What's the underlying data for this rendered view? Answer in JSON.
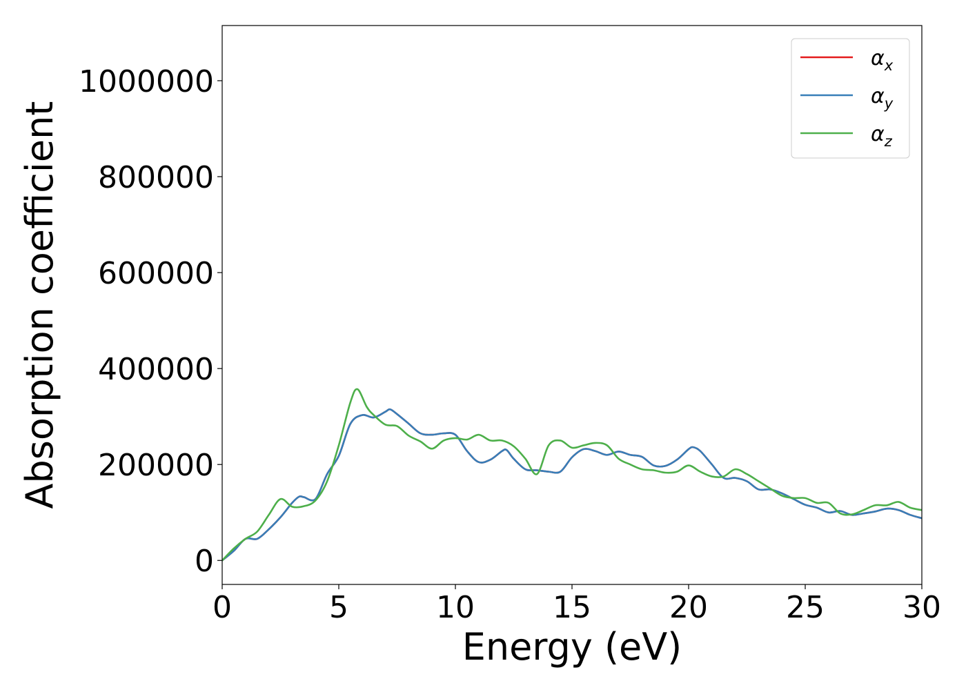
{
  "chart_data": {
    "type": "line",
    "xlabel": "Energy (eV)",
    "ylabel": "Absorption coefficient",
    "xlim": [
      0,
      30
    ],
    "ylim": [
      -50000,
      1115000
    ],
    "x_ticks": [
      "0",
      "5",
      "10",
      "15",
      "20",
      "25",
      "30"
    ],
    "y_ticks": [
      "0",
      "200000",
      "400000",
      "600000",
      "800000",
      "1000000"
    ],
    "grid": false,
    "legend_position": "top-right",
    "series": [
      {
        "name": "α_x",
        "label_main": "α",
        "label_sub": "x",
        "color": "#e41a1c",
        "x": [
          0,
          0.5,
          1.0,
          1.5,
          2.0,
          2.5,
          3.0,
          3.3,
          3.5,
          4.0,
          4.5,
          5.0,
          5.5,
          6.0,
          6.5,
          7.0,
          7.2,
          7.5,
          8.0,
          8.5,
          9.0,
          9.5,
          10.0,
          10.5,
          11.0,
          11.5,
          12.0,
          12.2,
          12.5,
          13.0,
          13.5,
          14.0,
          14.5,
          15.0,
          15.5,
          16.0,
          16.5,
          17.0,
          17.5,
          18.0,
          18.5,
          19.0,
          19.5,
          20.0,
          20.2,
          20.5,
          21.0,
          21.5,
          22.0,
          22.5,
          23.0,
          23.5,
          24.0,
          24.5,
          25.0,
          25.5,
          26.0,
          26.5,
          27.0,
          27.5,
          28.0,
          28.5,
          29.0,
          29.5,
          30.0
        ],
        "y": [
          0,
          20000,
          45000,
          45000,
          65000,
          90000,
          120000,
          133000,
          132000,
          128000,
          180000,
          218000,
          285000,
          303000,
          298000,
          310000,
          315000,
          305000,
          285000,
          265000,
          262000,
          265000,
          262000,
          228000,
          205000,
          210000,
          228000,
          230000,
          212000,
          190000,
          188000,
          185000,
          185000,
          215000,
          232000,
          228000,
          220000,
          227000,
          220000,
          216000,
          198000,
          197000,
          210000,
          232000,
          236000,
          228000,
          200000,
          172000,
          172000,
          165000,
          148000,
          148000,
          140000,
          128000,
          116000,
          110000,
          100000,
          103000,
          95000,
          98000,
          102000,
          108000,
          105000,
          95000,
          88000
        ]
      },
      {
        "name": "α_y",
        "label_main": "α",
        "label_sub": "y",
        "color": "#377eb8",
        "x": [
          0,
          0.5,
          1.0,
          1.5,
          2.0,
          2.5,
          3.0,
          3.3,
          3.5,
          4.0,
          4.5,
          5.0,
          5.5,
          6.0,
          6.5,
          7.0,
          7.2,
          7.5,
          8.0,
          8.5,
          9.0,
          9.5,
          10.0,
          10.5,
          11.0,
          11.5,
          12.0,
          12.2,
          12.5,
          13.0,
          13.5,
          14.0,
          14.5,
          15.0,
          15.5,
          16.0,
          16.5,
          17.0,
          17.5,
          18.0,
          18.5,
          19.0,
          19.5,
          20.0,
          20.2,
          20.5,
          21.0,
          21.5,
          22.0,
          22.5,
          23.0,
          23.5,
          24.0,
          24.5,
          25.0,
          25.5,
          26.0,
          26.5,
          27.0,
          27.5,
          28.0,
          28.5,
          29.0,
          29.5,
          30.0
        ],
        "y": [
          0,
          20000,
          45000,
          45000,
          65000,
          90000,
          120000,
          133000,
          132000,
          128000,
          180000,
          218000,
          285000,
          303000,
          298000,
          310000,
          315000,
          305000,
          285000,
          265000,
          262000,
          265000,
          262000,
          228000,
          205000,
          210000,
          228000,
          230000,
          212000,
          190000,
          188000,
          185000,
          185000,
          215000,
          232000,
          228000,
          220000,
          227000,
          220000,
          216000,
          198000,
          197000,
          210000,
          232000,
          236000,
          228000,
          200000,
          172000,
          172000,
          165000,
          148000,
          148000,
          140000,
          128000,
          116000,
          110000,
          100000,
          103000,
          95000,
          98000,
          102000,
          108000,
          105000,
          95000,
          88000
        ]
      },
      {
        "name": "α_z",
        "label_main": "α",
        "label_sub": "z",
        "color": "#4daf4a",
        "x": [
          0,
          0.5,
          1.0,
          1.5,
          2.0,
          2.5,
          3.0,
          3.5,
          4.0,
          4.5,
          5.0,
          5.5,
          5.8,
          6.2,
          6.5,
          7.0,
          7.5,
          8.0,
          8.5,
          9.0,
          9.5,
          10.0,
          10.5,
          11.0,
          11.5,
          12.0,
          12.5,
          13.0,
          13.5,
          14.0,
          14.5,
          15.0,
          15.5,
          16.0,
          16.5,
          17.0,
          17.5,
          18.0,
          18.5,
          19.0,
          19.5,
          20.0,
          20.5,
          21.0,
          21.5,
          22.0,
          22.5,
          23.0,
          23.5,
          24.0,
          24.5,
          25.0,
          25.5,
          26.0,
          26.5,
          27.0,
          27.5,
          28.0,
          28.5,
          29.0,
          29.5,
          30.0
        ],
        "y": [
          0,
          25000,
          45000,
          60000,
          95000,
          128000,
          112000,
          113000,
          125000,
          165000,
          240000,
          330000,
          357000,
          320000,
          303000,
          283000,
          280000,
          260000,
          248000,
          233000,
          250000,
          255000,
          252000,
          262000,
          250000,
          250000,
          238000,
          212000,
          180000,
          240000,
          250000,
          235000,
          240000,
          245000,
          240000,
          212000,
          200000,
          190000,
          188000,
          183000,
          185000,
          198000,
          185000,
          175000,
          175000,
          190000,
          180000,
          165000,
          150000,
          135000,
          130000,
          130000,
          120000,
          120000,
          98000,
          96000,
          105000,
          115000,
          115000,
          122000,
          110000,
          105000
        ]
      }
    ]
  }
}
